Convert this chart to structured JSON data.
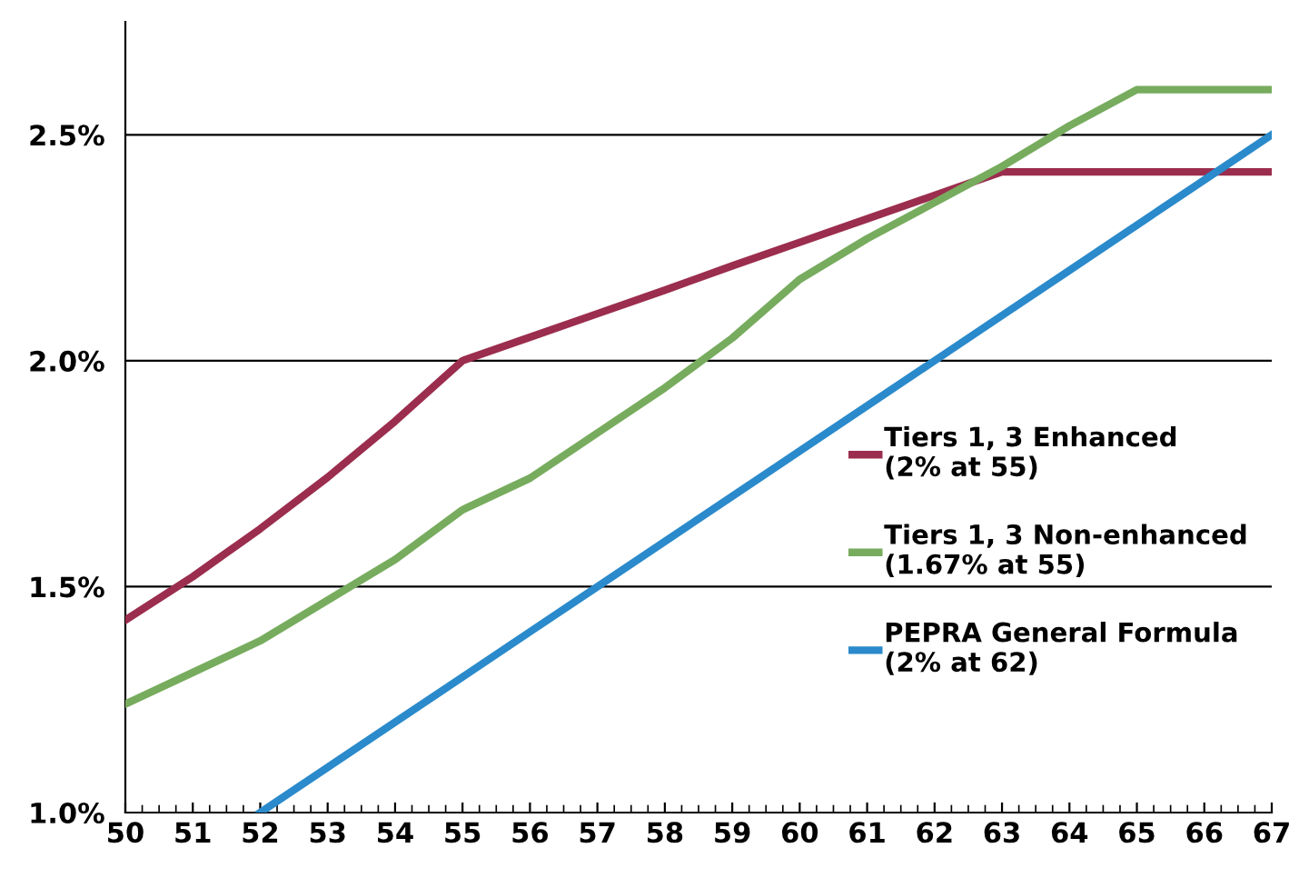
{
  "chart_data": {
    "type": "line",
    "x": [
      50,
      51,
      52,
      53,
      54,
      55,
      56,
      57,
      58,
      59,
      60,
      61,
      62,
      63,
      64,
      65,
      66,
      67
    ],
    "series": [
      {
        "name": "Tiers 1, 3 Enhanced\n(2% at 55)",
        "color": "#9b2d4e",
        "values": [
          1.426,
          1.522,
          1.628,
          1.742,
          1.866,
          2.0,
          2.052,
          2.104,
          2.156,
          2.21,
          2.262,
          2.314,
          2.366,
          2.418,
          2.418,
          2.418,
          2.418,
          2.418
        ]
      },
      {
        "name": "Tiers 1, 3 Non-enhanced\n(1.67% at 55)",
        "color": "#77ac5e",
        "values": [
          1.24,
          1.31,
          1.38,
          1.47,
          1.56,
          1.67,
          1.74,
          1.84,
          1.94,
          2.05,
          2.18,
          2.27,
          2.35,
          2.43,
          2.52,
          2.6,
          2.6,
          2.6
        ]
      },
      {
        "name": "PEPRA General Formula\n(2% at 62)",
        "color": "#2a8acb",
        "values": [
          null,
          null,
          1.0,
          1.1,
          1.2,
          1.3,
          1.4,
          1.5,
          1.6,
          1.7,
          1.8,
          1.9,
          2.0,
          2.1,
          2.2,
          2.3,
          2.4,
          2.5
        ]
      }
    ],
    "xlim": [
      50,
      67
    ],
    "xticks": [
      50,
      51,
      52,
      53,
      54,
      55,
      56,
      57,
      58,
      59,
      60,
      61,
      62,
      63,
      64,
      65,
      66,
      67
    ],
    "ylim": [
      1.0,
      2.75
    ],
    "yticks": [
      {
        "value": 1.0,
        "label": "1.0%"
      },
      {
        "value": 1.5,
        "label": "1.5%"
      },
      {
        "value": 2.0,
        "label": "2.0%"
      },
      {
        "value": 2.5,
        "label": "2.5%"
      }
    ],
    "grid": "y",
    "legend": "right",
    "marker": "none",
    "line_style": "solid"
  }
}
